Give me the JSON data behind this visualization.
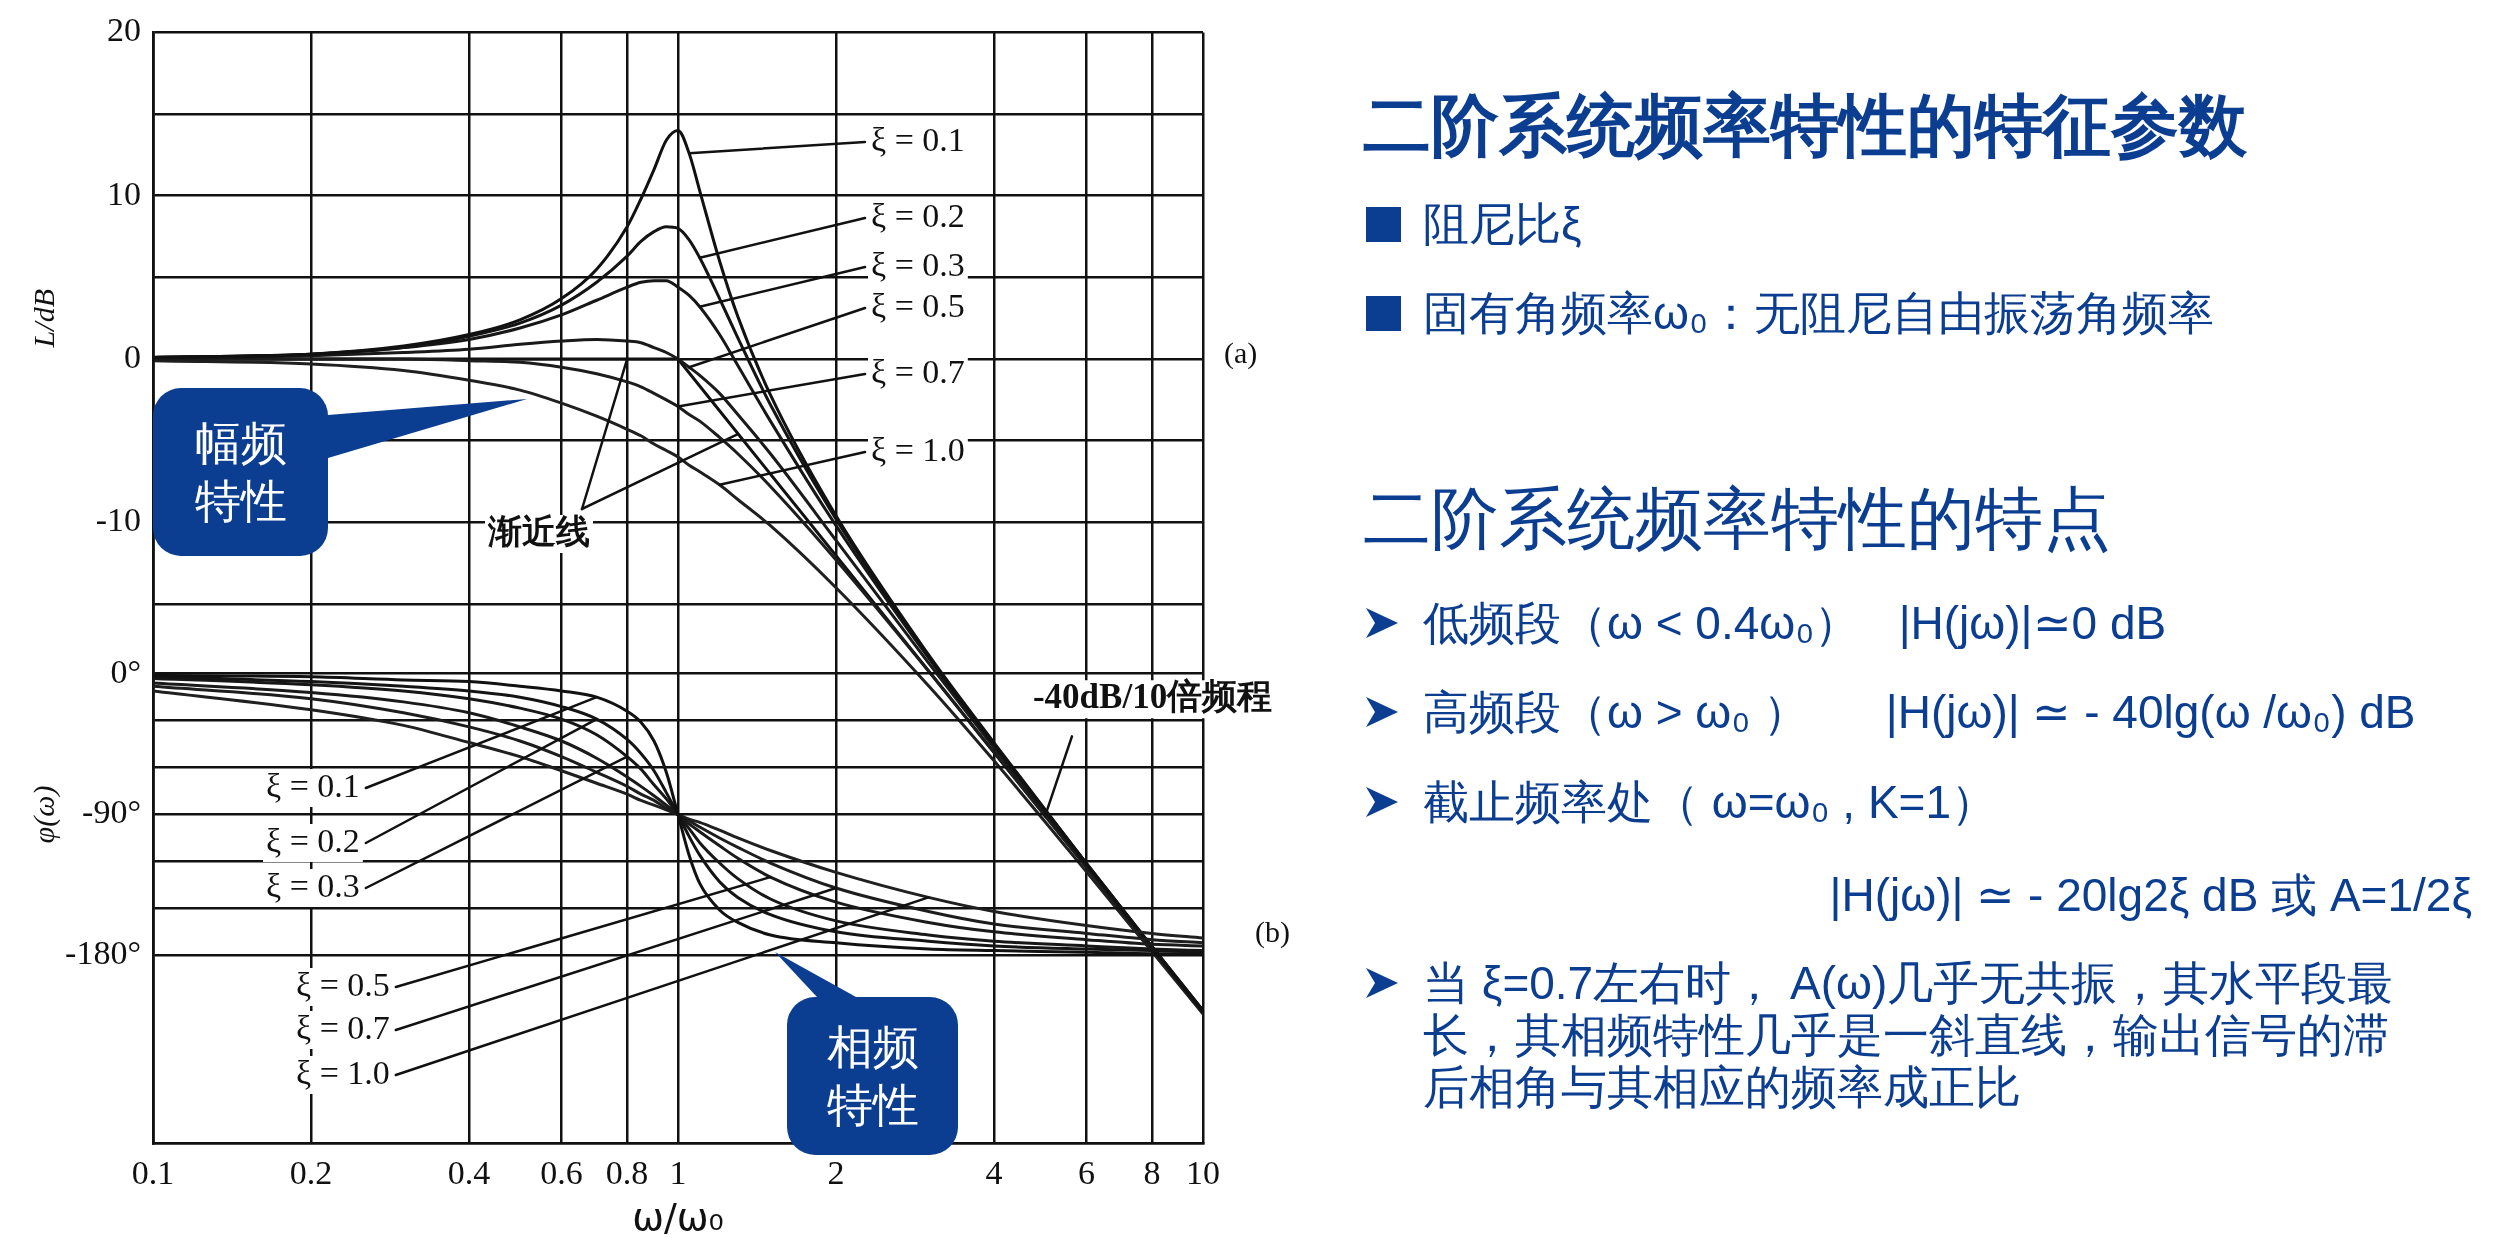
{
  "chart_data": [
    {
      "type": "line",
      "xlabel": "ω/ω₀",
      "ylabel": "L/dB",
      "log": "x",
      "grid": true,
      "x": [
        0.1,
        0.2,
        0.3,
        0.4,
        0.5,
        0.6,
        0.7,
        0.8,
        0.85,
        0.9,
        0.95,
        1,
        1.05,
        1.1,
        1.2,
        1.3,
        1.5,
        2,
        3,
        4,
        6,
        8,
        10
      ],
      "xlim": [
        0.1,
        10
      ],
      "xticks": [
        0.1,
        0.2,
        0.4,
        0.6,
        0.8,
        1,
        2,
        4,
        6,
        8,
        10
      ],
      "ylim": [
        -48,
        20
      ],
      "yticks": [
        20,
        {
          "value": 15,
          "label": null
        },
        10,
        {
          "value": 5,
          "label": null
        },
        0,
        {
          "value": -5,
          "label": null
        },
        -10,
        {
          "value": -15,
          "label": null
        }
      ],
      "series": [
        {
          "color": "#111111",
          "values": [
            0.1,
            0.3,
            0.8,
            1.5,
            2.4,
            3.7,
            5.5,
            8.1,
            9.8,
            11.6,
            13.4,
            14.0,
            12.6,
            10.3,
            6.0,
            2.6,
            -2.2,
            -9.6,
            -18.1,
            -23.5,
            -30.9,
            -36.0,
            -39.9
          ]
        },
        {
          "color": "#141414",
          "values": [
            0.1,
            0.3,
            0.7,
            1.4,
            2.2,
            3.3,
            4.7,
            6.3,
            7.2,
            7.8,
            8.1,
            8.0,
            7.3,
            6.2,
            3.7,
            1.3,
            -2.8,
            -9.8,
            -18.2,
            -23.6,
            -30.9,
            -36.0,
            -39.9
          ]
        },
        {
          "color": "#171717",
          "values": [
            0.1,
            0.3,
            0.7,
            1.2,
            1.9,
            2.7,
            3.6,
            4.4,
            4.7,
            4.8,
            4.8,
            4.4,
            3.9,
            3.2,
            1.5,
            -0.4,
            -3.8,
            -10.2,
            -18.3,
            -23.6,
            -30.9,
            -36.0,
            -39.9
          ]
        },
        {
          "color": "#1a1a1a",
          "values": [
            0.0,
            0.2,
            0.4,
            0.6,
            0.9,
            1.1,
            1.2,
            1.1,
            1.0,
            0.7,
            0.4,
            0.0,
            -0.5,
            -1.0,
            -2.1,
            -3.4,
            -5.8,
            -11.1,
            -18.6,
            -23.8,
            -31.0,
            -36.1,
            -40.0
          ]
        },
        {
          "color": "#1d1d1d",
          "values": [
            0.0,
            0.0,
            0.0,
            -0.1,
            -0.2,
            -0.5,
            -0.9,
            -1.4,
            -1.7,
            -2.1,
            -2.5,
            -2.9,
            -3.4,
            -3.8,
            -4.8,
            -5.8,
            -7.8,
            -12.3,
            -19.1,
            -24.1,
            -31.1,
            -36.1,
            -40.0
          ]
        },
        {
          "color": "#202020",
          "values": [
            -0.1,
            -0.3,
            -0.7,
            -1.3,
            -1.9,
            -2.7,
            -3.5,
            -4.3,
            -4.7,
            -5.2,
            -5.6,
            -6.0,
            -6.5,
            -6.9,
            -7.7,
            -8.6,
            -10.2,
            -14.0,
            -20.0,
            -24.6,
            -31.4,
            -36.3,
            -40.1
          ]
        },
        {
          "color": "#111111",
          "x": [
            0.1,
            1,
            10
          ],
          "values": [
            0,
            0,
            -40
          ]
        }
      ],
      "annotations": [
        "幅频特性",
        "(a)",
        {
          "text": "-40dB/10倍频程",
          "x": 5,
          "y": -28
        },
        {
          "text": "ξ = 0.1",
          "x": 1.05,
          "y": 12.6
        },
        {
          "text": "ξ = 0.2",
          "x": 1.1,
          "y": 6.2
        },
        {
          "text": "ξ = 0.3",
          "x": 1.1,
          "y": 3.2
        },
        {
          "text": "ξ = 0.5",
          "x": 1.05,
          "y": -0.5
        },
        {
          "text": "ξ = 0.7",
          "x": 1,
          "y": -2.9
        },
        {
          "text": "ξ = 1.0",
          "x": 1.2,
          "y": -7.7
        },
        {
          "text": "渐近线",
          "x": 1.3,
          "y": -4.6
        }
      ]
    },
    {
      "type": "line",
      "ylabel": "φ(ω)",
      "log": "x",
      "grid": "y",
      "tick_labels": "y",
      "x": [
        0.1,
        0.2,
        0.3,
        0.4,
        0.5,
        0.6,
        0.7,
        0.8,
        0.85,
        0.9,
        0.95,
        1,
        1.05,
        1.1,
        1.2,
        1.3,
        1.5,
        2,
        3,
        4,
        6,
        8,
        10
      ],
      "xlim": [
        0.1,
        10
      ],
      "xticks": [
        0.1,
        0.2,
        0.4,
        0.6,
        0.8,
        1,
        2,
        4,
        6,
        8,
        10
      ],
      "ylim": [
        -300,
        410
      ],
      "yticks": [
        {
          "value": 0,
          "label": "0°"
        },
        {
          "value": -30,
          "label": null
        },
        {
          "value": -60,
          "label": null
        },
        {
          "value": -90,
          "label": "-90°"
        },
        {
          "value": -120,
          "label": null
        },
        {
          "value": -150,
          "label": null
        },
        {
          "value": -180,
          "label": "-180°"
        }
      ],
      "series": [
        {
          "color": "#111111",
          "values": [
            -1,
            -2,
            -4,
            -5,
            -8,
            -11,
            -15,
            -24,
            -31,
            -43,
            -63,
            -90,
            -116,
            -134,
            -151,
            -159,
            -167,
            -172,
            -176,
            -177,
            -178,
            -179,
            -179
          ]
        },
        {
          "color": "#141414",
          "values": [
            -2,
            -5,
            -8,
            -11,
            -15,
            -21,
            -29,
            -42,
            -51,
            -62,
            -76,
            -90,
            -104,
            -116,
            -133,
            -143,
            -154,
            -165,
            -171,
            -174,
            -176,
            -177,
            -178
          ]
        },
        {
          "color": "#171717",
          "values": [
            -3,
            -7,
            -11,
            -16,
            -22,
            -29,
            -39,
            -53,
            -61,
            -71,
            -80,
            -90,
            -99,
            -108,
            -121,
            -131,
            -144,
            -158,
            -167,
            -171,
            -174,
            -176,
            -177
          ]
        },
        {
          "color": "#1a1a1a",
          "values": [
            -6,
            -12,
            -18,
            -25,
            -34,
            -43,
            -54,
            -66,
            -72,
            -78,
            -84,
            -90,
            -96,
            -101,
            -110,
            -118,
            -130,
            -146,
            -159,
            -165,
            -170,
            -173,
            -174
          ]
        },
        {
          "color": "#1d1d1d",
          "values": [
            -8,
            -16,
            -25,
            -34,
            -43,
            -53,
            -63,
            -72,
            -77,
            -81,
            -86,
            -90,
            -94,
            -98,
            -105,
            -111,
            -121,
            -137,
            -152,
            -160,
            -166,
            -170,
            -172
          ]
        },
        {
          "color": "#202020",
          "values": [
            -11,
            -23,
            -33,
            -44,
            -53,
            -62,
            -70,
            -77,
            -81,
            -84,
            -87,
            -90,
            -93,
            -95,
            -100,
            -105,
            -113,
            -127,
            -143,
            -152,
            -161,
            -166,
            -169
          ]
        }
      ],
      "annotations": [
        "相频特性",
        "(b)",
        {
          "text": "ξ = 0.1",
          "x": 0.7,
          "y": -15
        },
        {
          "text": "ξ = 0.2",
          "x": 0.7,
          "y": -29
        },
        {
          "text": "ξ = 0.3",
          "x": 0.8,
          "y": -53
        },
        {
          "text": "ξ = 0.5",
          "x": 1.5,
          "y": -130
        },
        {
          "text": "ξ = 0.7",
          "x": 2,
          "y": -137
        },
        {
          "text": "ξ = 1.0",
          "x": 3,
          "y": -143
        }
      ]
    },
    {
      "type": "other",
      "title": "二阶系统频率特性的特征参数",
      "annotations": [
        "阻尼比ξ",
        "固有角频率ω₀：无阻尼自由振荡角频率"
      ]
    },
    {
      "type": "other",
      "title": "二阶系统频率特性的特点",
      "annotations": [
        "低频段（ω < 0.4ω₀）   |H(jω)|≃0 dB",
        "高频段（ω > ω₀ ）      |H(jω)| ≃ - 40lg(ω /ω₀) dB",
        "截止频率处（ ω=ω₀ , K=1）\n|H(jω)| ≃ - 20lg2ξ dB 或 A=1/2ξ",
        "当 ξ=0.7左右时， A(ω)几乎无共振，其水平段最长，其相频特性几乎是一斜直线，输出信号的滞后相角与其相应的频率成正比"
      ]
    }
  ]
}
